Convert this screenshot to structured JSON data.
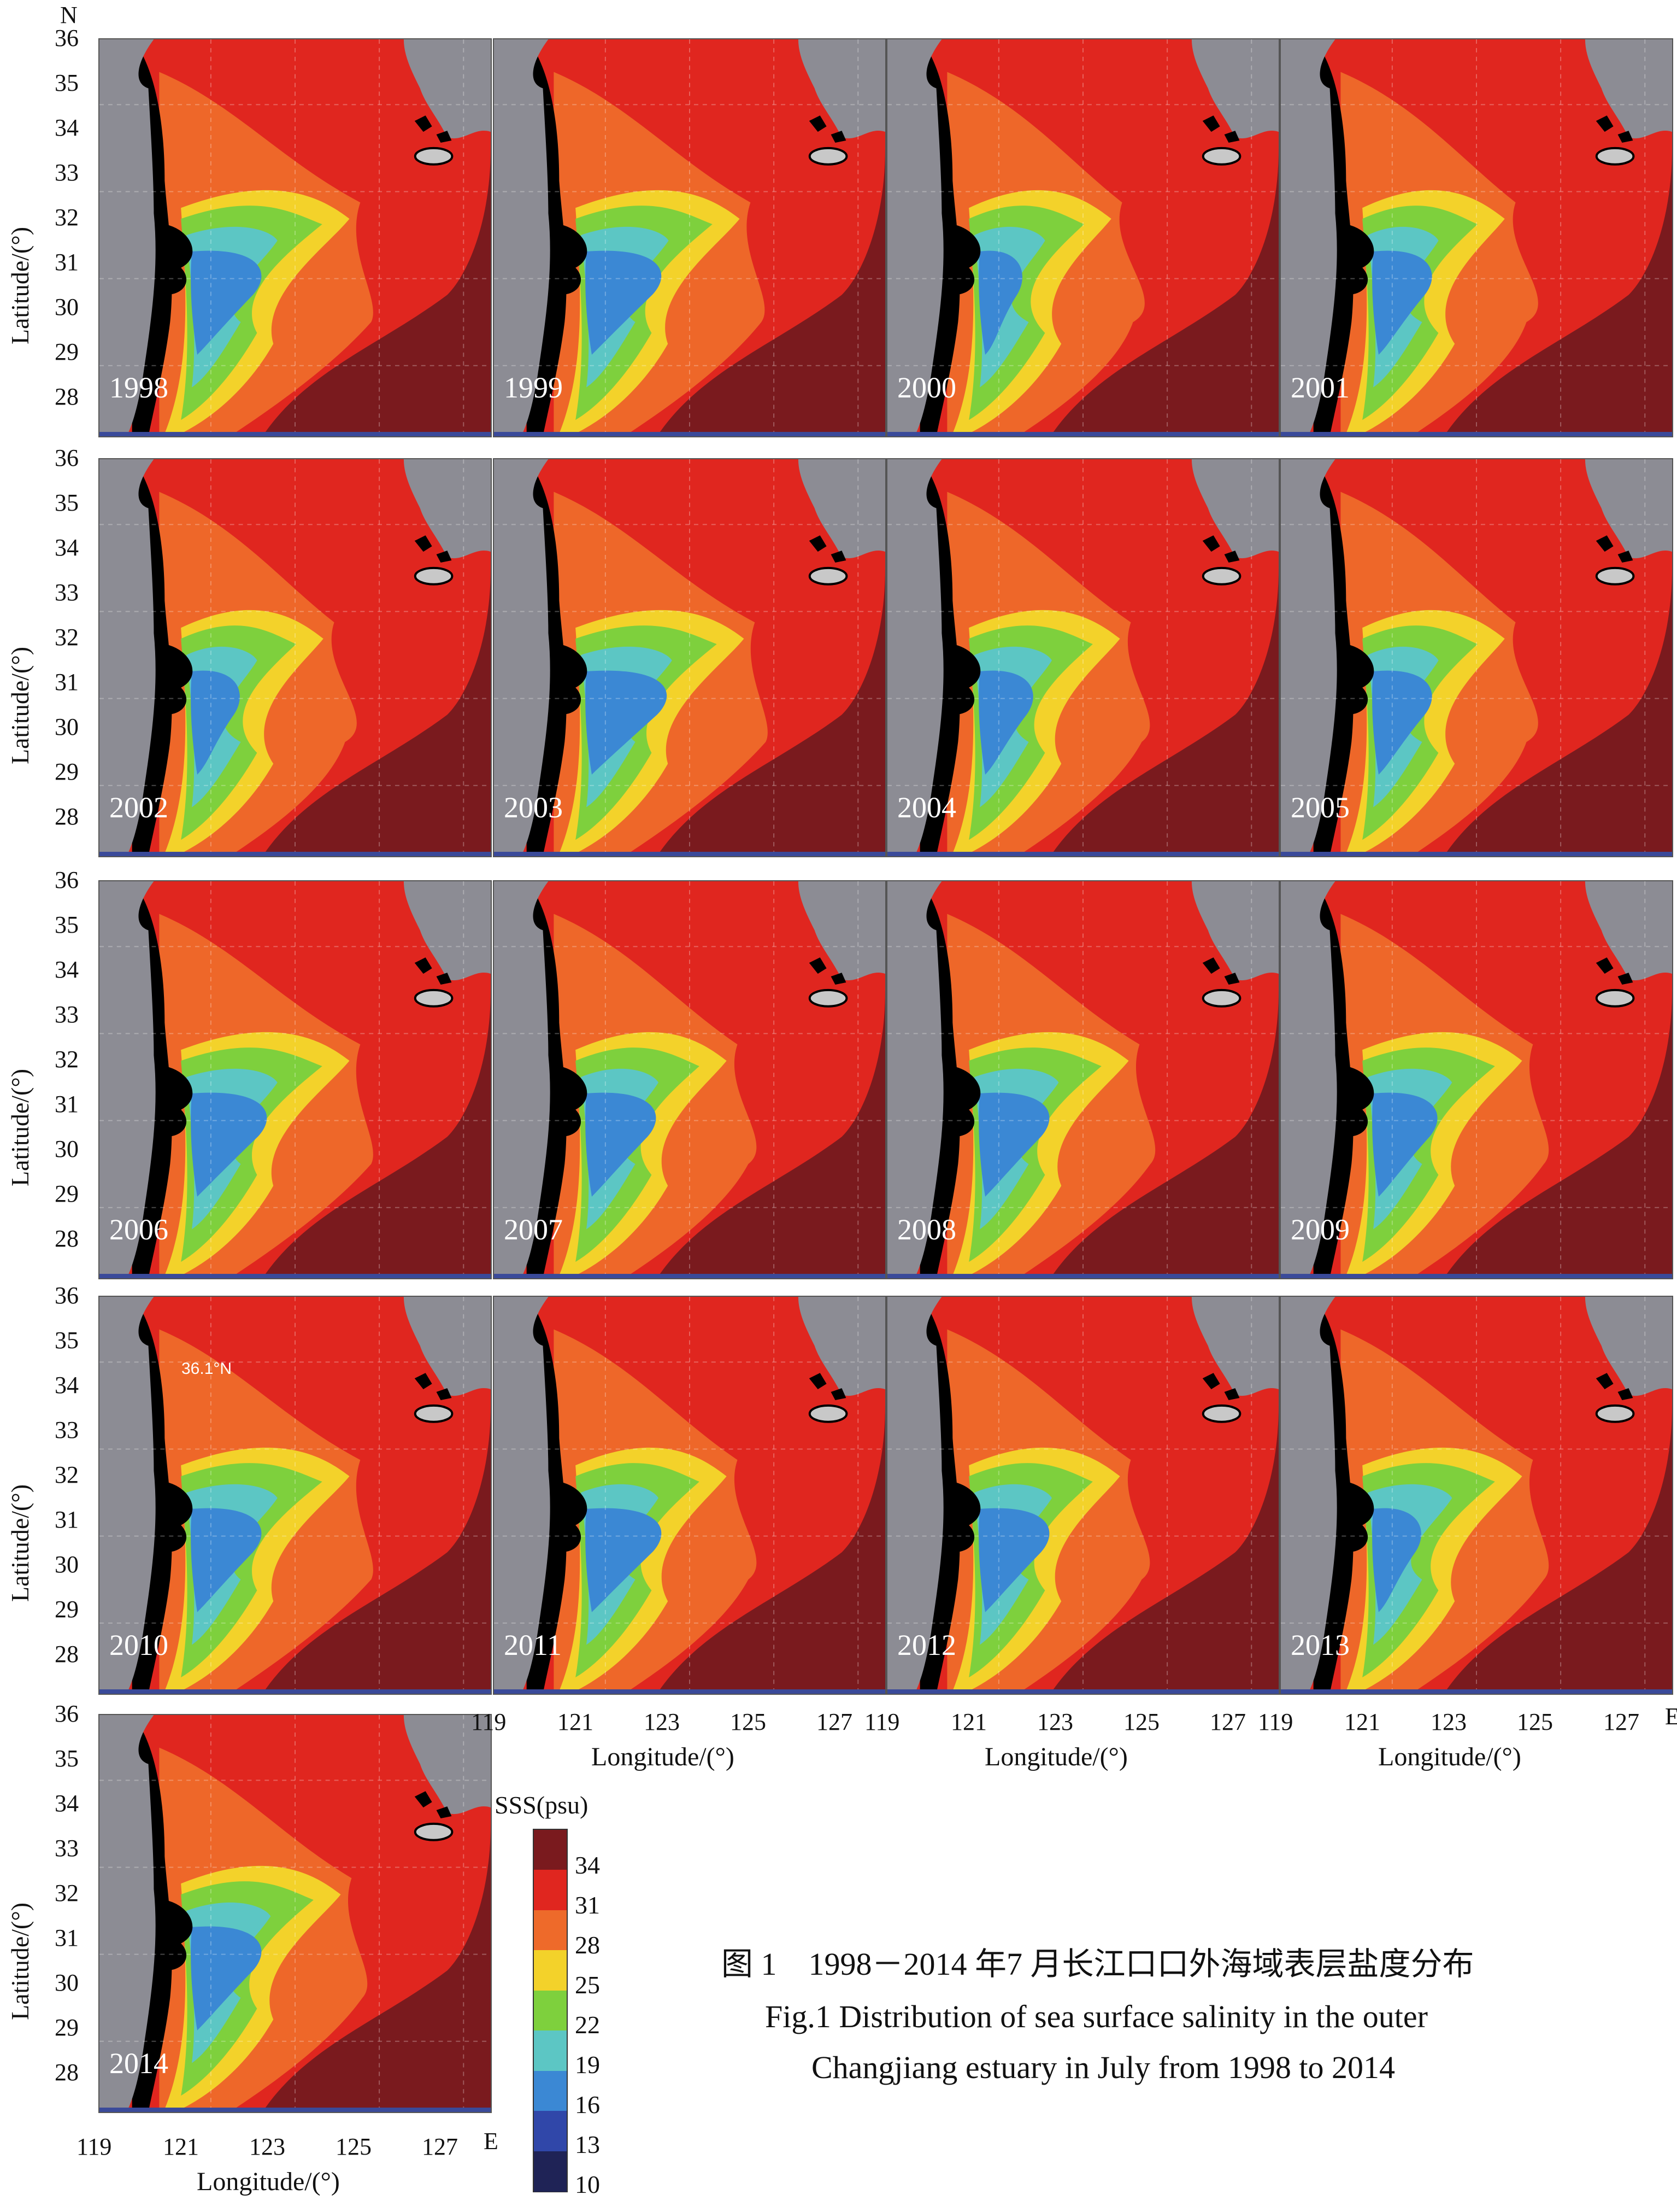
{
  "compass": {
    "north": "N",
    "east": "E"
  },
  "panels": [
    {
      "year": "1998",
      "plume": 1.0,
      "fresh": 0.8
    },
    {
      "year": "1999",
      "plume": 0.95,
      "fresh": 0.9
    },
    {
      "year": "2000",
      "plume": 0.7,
      "fresh": 0.3
    },
    {
      "year": "2001",
      "plume": 0.7,
      "fresh": 0.6
    },
    {
      "year": "2002",
      "plume": 0.7,
      "fresh": 0.4
    },
    {
      "year": "2003",
      "plume": 1.0,
      "fresh": 1.0
    },
    {
      "year": "2004",
      "plume": 0.8,
      "fresh": 0.5
    },
    {
      "year": "2005",
      "plume": 0.7,
      "fresh": 0.6
    },
    {
      "year": "2006",
      "plume": 1.0,
      "fresh": 0.9
    },
    {
      "year": "2007",
      "plume": 0.8,
      "fresh": 0.8
    },
    {
      "year": "2008",
      "plume": 0.9,
      "fresh": 0.8
    },
    {
      "year": "2009",
      "plume": 0.9,
      "fresh": 0.7
    },
    {
      "year": "2010",
      "plume": 1.0,
      "fresh": 0.8
    },
    {
      "year": "2011",
      "plume": 0.8,
      "fresh": 0.9
    },
    {
      "year": "2012",
      "plume": 0.8,
      "fresh": 0.8
    },
    {
      "year": "2013",
      "plume": 0.9,
      "fresh": 0.4
    },
    {
      "year": "2014",
      "plume": 0.9,
      "fresh": 0.8
    }
  ],
  "inset_label": "36.1°N",
  "axes": {
    "ylabel": "Latitude/(°)",
    "xlabel": "Longitude/(°)",
    "lat_ticks": [
      "36",
      "35",
      "34",
      "33",
      "32",
      "31",
      "30",
      "29",
      "28"
    ],
    "lon_ticks": [
      "119",
      "121",
      "123",
      "125",
      "127"
    ]
  },
  "colorbar": {
    "title": "SSS(psu)",
    "ticks": [
      "34",
      "31",
      "28",
      "25",
      "22",
      "19",
      "16",
      "13",
      "10"
    ],
    "colors": [
      "#7a1a1e",
      "#e0261f",
      "#ee6a2a",
      "#f3d22a",
      "#7ed03d",
      "#5cc6c4",
      "#3b88d4",
      "#3047a9",
      "#1f2356"
    ]
  },
  "caption": {
    "chinese": "图 1　1998－2014 年7 月长江口口外海域表层盐度分布",
    "english_line1": "Fig.1 Distribution of sea surface salinity in the outer",
    "english_line2": "Changjiang estuary in July from 1998 to 2014"
  }
}
